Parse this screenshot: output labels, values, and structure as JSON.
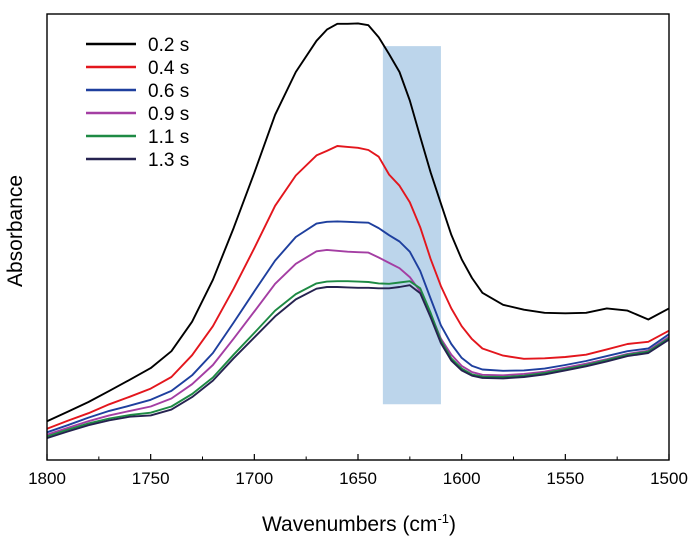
{
  "chart_data": {
    "type": "line",
    "xlabel": "Wavenumbers (cm",
    "xlabel_superscript": "-1",
    "xlabel_suffix": ")",
    "ylabel": "Absorbance",
    "xlim": [
      1800,
      1500
    ],
    "x_reversed": true,
    "y_tick_labels": false,
    "x_ticks": [
      1800,
      1750,
      1700,
      1650,
      1600,
      1550,
      1500
    ],
    "x_tick_labels": [
      "1800",
      "1750",
      "1700",
      "1650",
      "1600",
      "1550",
      "1500"
    ],
    "ylim": [
      0,
      1
    ],
    "grid": false,
    "legend_position": "top-left",
    "highlight_band": {
      "x_from": 1638,
      "x_to": 1610,
      "y_from": 0.125,
      "y_to": 0.928,
      "color": "#a9c9e6"
    },
    "x": [
      1800,
      1790,
      1780,
      1770,
      1760,
      1750,
      1740,
      1730,
      1720,
      1710,
      1700,
      1690,
      1680,
      1670,
      1665,
      1660,
      1655,
      1650,
      1645,
      1640,
      1635,
      1630,
      1625,
      1620,
      1615,
      1610,
      1605,
      1600,
      1595,
      1590,
      1580,
      1570,
      1560,
      1550,
      1540,
      1530,
      1520,
      1510,
      1500
    ],
    "series": [
      {
        "name": "0.2 s",
        "color": "#000000",
        "values": [
          0.087,
          0.108,
          0.13,
          0.155,
          0.18,
          0.206,
          0.244,
          0.31,
          0.404,
          0.52,
          0.644,
          0.774,
          0.87,
          0.94,
          0.965,
          0.978,
          0.978,
          0.979,
          0.975,
          0.948,
          0.91,
          0.87,
          0.806,
          0.725,
          0.645,
          0.575,
          0.505,
          0.45,
          0.408,
          0.375,
          0.348,
          0.337,
          0.33,
          0.329,
          0.33,
          0.34,
          0.335,
          0.315,
          0.34
        ]
      },
      {
        "name": "0.4 s",
        "color": "#e3161d",
        "values": [
          0.07,
          0.088,
          0.105,
          0.125,
          0.142,
          0.16,
          0.186,
          0.235,
          0.3,
          0.384,
          0.475,
          0.57,
          0.638,
          0.683,
          0.693,
          0.704,
          0.702,
          0.7,
          0.695,
          0.68,
          0.64,
          0.615,
          0.578,
          0.522,
          0.451,
          0.39,
          0.34,
          0.3,
          0.271,
          0.25,
          0.234,
          0.227,
          0.228,
          0.231,
          0.236,
          0.248,
          0.26,
          0.265,
          0.29
        ]
      },
      {
        "name": "0.6 s",
        "color": "#1e3f9e",
        "values": [
          0.062,
          0.078,
          0.095,
          0.11,
          0.122,
          0.135,
          0.155,
          0.19,
          0.24,
          0.308,
          0.378,
          0.447,
          0.5,
          0.53,
          0.534,
          0.535,
          0.534,
          0.533,
          0.532,
          0.52,
          0.504,
          0.49,
          0.467,
          0.424,
          0.362,
          0.302,
          0.26,
          0.229,
          0.211,
          0.203,
          0.2,
          0.201,
          0.205,
          0.213,
          0.222,
          0.233,
          0.244,
          0.25,
          0.282
        ]
      },
      {
        "name": "0.9 s",
        "color": "#a43ea3",
        "values": [
          0.057,
          0.072,
          0.087,
          0.1,
          0.11,
          0.12,
          0.138,
          0.17,
          0.213,
          0.272,
          0.333,
          0.395,
          0.44,
          0.468,
          0.471,
          0.469,
          0.467,
          0.466,
          0.465,
          0.454,
          0.442,
          0.43,
          0.41,
          0.378,
          0.328,
          0.272,
          0.236,
          0.211,
          0.197,
          0.191,
          0.19,
          0.193,
          0.198,
          0.207,
          0.216,
          0.226,
          0.238,
          0.245,
          0.276
        ]
      },
      {
        "name": "1.1 s",
        "color": "#1e8a44",
        "values": [
          0.053,
          0.068,
          0.082,
          0.093,
          0.101,
          0.106,
          0.12,
          0.148,
          0.185,
          0.236,
          0.285,
          0.335,
          0.372,
          0.396,
          0.4,
          0.401,
          0.401,
          0.4,
          0.399,
          0.396,
          0.395,
          0.398,
          0.401,
          0.385,
          0.33,
          0.268,
          0.228,
          0.205,
          0.192,
          0.187,
          0.186,
          0.189,
          0.195,
          0.204,
          0.213,
          0.224,
          0.236,
          0.243,
          0.273
        ]
      },
      {
        "name": "1.3 s",
        "color": "#262350",
        "values": [
          0.049,
          0.064,
          0.078,
          0.089,
          0.097,
          0.1,
          0.113,
          0.141,
          0.178,
          0.228,
          0.275,
          0.322,
          0.36,
          0.384,
          0.388,
          0.388,
          0.387,
          0.386,
          0.386,
          0.385,
          0.385,
          0.388,
          0.392,
          0.374,
          0.32,
          0.262,
          0.223,
          0.201,
          0.189,
          0.184,
          0.183,
          0.186,
          0.192,
          0.201,
          0.21,
          0.221,
          0.233,
          0.24,
          0.27
        ]
      }
    ]
  }
}
